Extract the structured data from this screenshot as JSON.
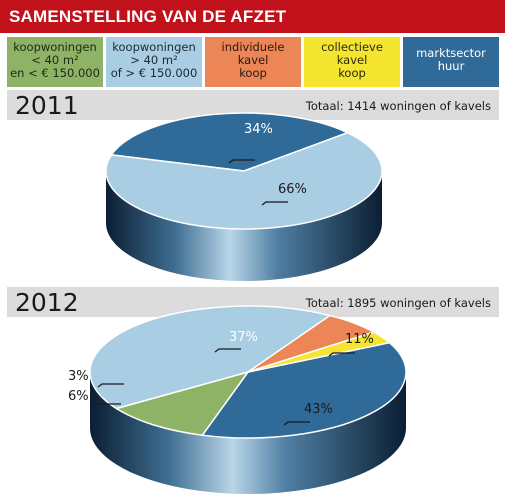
{
  "title": "SAMENSTELLING VAN DE AFZET",
  "legend": [
    {
      "lines": [
        "koopwoningen",
        "< 40 m²",
        "en < € 150.000"
      ],
      "color": "#8fb366",
      "text_color": "#1e2a12"
    },
    {
      "lines": [
        "koopwoningen",
        "> 40 m²",
        "of > € 150.000"
      ],
      "color": "#a9cde3",
      "text_color": "#1b2a36"
    },
    {
      "lines": [
        "individuele",
        "kavel",
        "koop"
      ],
      "color": "#ec8656",
      "text_color": "#2b160d"
    },
    {
      "lines": [
        "collectieve",
        "kavel",
        "koop"
      ],
      "color": "#f4e531",
      "text_color": "#2b2810"
    },
    {
      "lines": [
        "marktsector",
        "huur"
      ],
      "color": "#2f6a98",
      "text_color": "#ffffff"
    }
  ],
  "chart_data": [
    {
      "type": "pie",
      "title": "2011",
      "subtitle": "Totaal: 1414 woningen of kavels",
      "slices": [
        {
          "label": "marktsector huur",
          "value": 34,
          "text": "34%",
          "color": "#2f6a98"
        },
        {
          "label": "koopwoningen > 40 m² of > € 150.000",
          "value": 66,
          "text": "66%",
          "color": "#a9cde3"
        }
      ]
    },
    {
      "type": "pie",
      "title": "2012",
      "subtitle": "Totaal: 1895 woningen of kavels",
      "slices": [
        {
          "label": "marktsector huur",
          "value": 37,
          "text": "37%",
          "color": "#2f6a98"
        },
        {
          "label": "koopwoningen < 40 m² en < € 150.000",
          "value": 11,
          "text": "11%",
          "color": "#8fb366"
        },
        {
          "label": "koopwoningen > 40 m² of > € 150.000",
          "value": 43,
          "text": "43%",
          "color": "#a9cde3"
        },
        {
          "label": "individuele kavel koop",
          "value": 6,
          "text": "6%",
          "color": "#ec8656"
        },
        {
          "label": "collectieve kavel koop",
          "value": 3,
          "text": "3%",
          "color": "#f4e531"
        }
      ]
    }
  ]
}
